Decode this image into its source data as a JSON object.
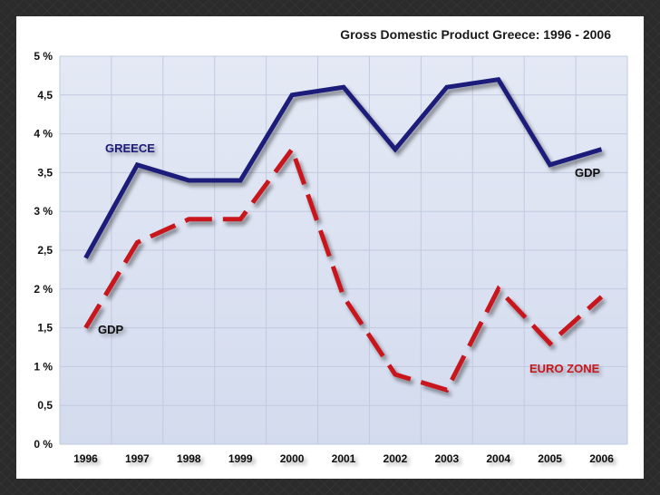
{
  "chart_data": {
    "type": "line",
    "title": "Gross Domestic Product Greece: 1996 - 2006",
    "categories": [
      "1996",
      "1997",
      "1998",
      "1999",
      "2000",
      "2001",
      "2002",
      "2003",
      "2004",
      "2005",
      "2006"
    ],
    "y_tick_labels": [
      "0 %",
      "0,5",
      "1 %",
      "1,5",
      "2 %",
      "2,5",
      "3 %",
      "3,5",
      "4 %",
      "4,5",
      "5 %"
    ],
    "ylim": [
      0,
      5
    ],
    "grid": true,
    "series": [
      {
        "name": "Greece GDP",
        "color": "#1a1a7a",
        "style": "solid",
        "values": [
          2.4,
          3.6,
          3.4,
          3.4,
          4.5,
          4.6,
          3.8,
          4.6,
          4.7,
          3.6,
          3.8
        ]
      },
      {
        "name": "Euro Zone GDP",
        "color": "#c8141e",
        "style": "dashed",
        "values": [
          1.5,
          2.6,
          2.9,
          2.9,
          3.8,
          1.9,
          0.9,
          0.7,
          2.0,
          1.3,
          1.9
        ]
      }
    ],
    "annotations": {
      "greece": "GREECE",
      "gdp_greece": "GDP",
      "gdp_euro": "GDP",
      "euro_zone": "EURO ZONE"
    }
  }
}
